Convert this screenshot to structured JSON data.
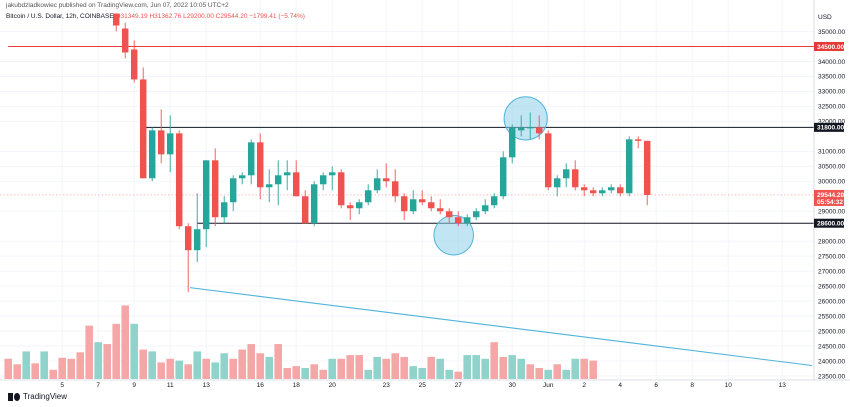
{
  "header": {
    "publisher": "jakubdzladkowiec published on TradingView.com, Jun 07, 2022 10:05 UTC+2",
    "symbol": "Bitcoin / U.S. Dollar, 12h, COINBASE",
    "o": "O31349.19",
    "h": "H31362.76",
    "l": "L29200.00",
    "c": "C29544.20",
    "chg": "−1799.41 (−5.74%)",
    "currency": "USD"
  },
  "logo": {
    "text": "TradingView"
  },
  "colors": {
    "up": "#26a69a",
    "down": "#ef5350",
    "up_vol": "#8fd3cb",
    "down_vol": "#f5a6a6",
    "resistance_red": "#e53935",
    "level_black": "#131722",
    "trend": "#4fb3d9",
    "circle_fill": "#8fd0ea"
  },
  "chart_data": {
    "type": "candlestick",
    "timeframe": "12h",
    "ylim": [
      23500,
      35500
    ],
    "y_ticks": [
      "35000.00",
      "34000.00",
      "33500.00",
      "33000.00",
      "32500.00",
      "32000.00",
      "31000.00",
      "30500.00",
      "30000.00",
      "29000.00",
      "28000.00",
      "27500.00",
      "27000.00",
      "26500.00",
      "26000.00",
      "25500.00",
      "25000.00",
      "24500.00",
      "24000.00",
      "23500.00"
    ],
    "x_ticks": [
      {
        "label": "5",
        "slot": 6
      },
      {
        "label": "7",
        "slot": 10
      },
      {
        "label": "9",
        "slot": 14
      },
      {
        "label": "11",
        "slot": 18
      },
      {
        "label": "13",
        "slot": 22
      },
      {
        "label": "16",
        "slot": 28
      },
      {
        "label": "18",
        "slot": 32
      },
      {
        "label": "20",
        "slot": 36
      },
      {
        "label": "23",
        "slot": 42
      },
      {
        "label": "25",
        "slot": 46
      },
      {
        "label": "27",
        "slot": 50
      },
      {
        "label": "30",
        "slot": 56
      },
      {
        "label": "Jun",
        "slot": 60
      },
      {
        "label": "2",
        "slot": 64
      },
      {
        "label": "4",
        "slot": 68
      },
      {
        "label": "6",
        "slot": 72
      },
      {
        "label": "8",
        "slot": 76
      },
      {
        "label": "10",
        "slot": 80
      },
      {
        "label": "13",
        "slot": 86
      }
    ],
    "candles": [
      {
        "slot": 12,
        "o": 35600,
        "h": 35600,
        "l": 35000,
        "c": 35200
      },
      {
        "slot": 13,
        "o": 35100,
        "h": 35300,
        "l": 34100,
        "c": 34300
      },
      {
        "slot": 14,
        "o": 34400,
        "h": 34700,
        "l": 33300,
        "c": 33400
      },
      {
        "slot": 15,
        "o": 33400,
        "h": 33800,
        "l": 30100,
        "c": 30100
      },
      {
        "slot": 16,
        "o": 30100,
        "h": 31800,
        "l": 30000,
        "c": 31700
      },
      {
        "slot": 17,
        "o": 31700,
        "h": 32400,
        "l": 30600,
        "c": 30900
      },
      {
        "slot": 18,
        "o": 30900,
        "h": 32200,
        "l": 30300,
        "c": 31600
      },
      {
        "slot": 19,
        "o": 31600,
        "h": 31700,
        "l": 28400,
        "c": 28500
      },
      {
        "slot": 20,
        "o": 28500,
        "h": 28600,
        "l": 26300,
        "c": 27700
      },
      {
        "slot": 21,
        "o": 27700,
        "h": 29600,
        "l": 27300,
        "c": 28400
      },
      {
        "slot": 22,
        "o": 28400,
        "h": 30700,
        "l": 27800,
        "c": 30700
      },
      {
        "slot": 23,
        "o": 30700,
        "h": 31100,
        "l": 28500,
        "c": 28800
      },
      {
        "slot": 24,
        "o": 28800,
        "h": 29500,
        "l": 28600,
        "c": 29300
      },
      {
        "slot": 25,
        "o": 29300,
        "h": 30200,
        "l": 29000,
        "c": 30100
      },
      {
        "slot": 26,
        "o": 30100,
        "h": 30300,
        "l": 29900,
        "c": 30200
      },
      {
        "slot": 27,
        "o": 30200,
        "h": 31400,
        "l": 29900,
        "c": 31300
      },
      {
        "slot": 28,
        "o": 31300,
        "h": 31600,
        "l": 29400,
        "c": 29800
      },
      {
        "slot": 29,
        "o": 29800,
        "h": 30400,
        "l": 29300,
        "c": 29900
      },
      {
        "slot": 30,
        "o": 29900,
        "h": 30700,
        "l": 29200,
        "c": 30200
      },
      {
        "slot": 31,
        "o": 30200,
        "h": 30700,
        "l": 29700,
        "c": 30300
      },
      {
        "slot": 32,
        "o": 30300,
        "h": 30700,
        "l": 29500,
        "c": 29500
      },
      {
        "slot": 33,
        "o": 29500,
        "h": 29700,
        "l": 28600,
        "c": 28600
      },
      {
        "slot": 34,
        "o": 28600,
        "h": 30000,
        "l": 28500,
        "c": 29900
      },
      {
        "slot": 35,
        "o": 29900,
        "h": 30300,
        "l": 29700,
        "c": 30200
      },
      {
        "slot": 36,
        "o": 30200,
        "h": 30500,
        "l": 29700,
        "c": 30300
      },
      {
        "slot": 37,
        "o": 30300,
        "h": 30400,
        "l": 29100,
        "c": 29200
      },
      {
        "slot": 38,
        "o": 29200,
        "h": 29300,
        "l": 28700,
        "c": 29100
      },
      {
        "slot": 39,
        "o": 29100,
        "h": 29400,
        "l": 28900,
        "c": 29300
      },
      {
        "slot": 40,
        "o": 29300,
        "h": 29900,
        "l": 29200,
        "c": 29700
      },
      {
        "slot": 41,
        "o": 29700,
        "h": 30400,
        "l": 29600,
        "c": 30100
      },
      {
        "slot": 42,
        "o": 30100,
        "h": 30600,
        "l": 29800,
        "c": 30000
      },
      {
        "slot": 43,
        "o": 30000,
        "h": 30400,
        "l": 29300,
        "c": 29500
      },
      {
        "slot": 44,
        "o": 29500,
        "h": 29600,
        "l": 28700,
        "c": 29000
      },
      {
        "slot": 45,
        "o": 29000,
        "h": 29700,
        "l": 28900,
        "c": 29400
      },
      {
        "slot": 46,
        "o": 29400,
        "h": 29700,
        "l": 29200,
        "c": 29300
      },
      {
        "slot": 47,
        "o": 29300,
        "h": 29500,
        "l": 29000,
        "c": 29100
      },
      {
        "slot": 48,
        "o": 29100,
        "h": 29400,
        "l": 28900,
        "c": 29000
      },
      {
        "slot": 49,
        "o": 29000,
        "h": 29100,
        "l": 28600,
        "c": 28800
      },
      {
        "slot": 50,
        "o": 28800,
        "h": 29000,
        "l": 28500,
        "c": 28600
      },
      {
        "slot": 51,
        "o": 28600,
        "h": 28900,
        "l": 28500,
        "c": 28800
      },
      {
        "slot": 52,
        "o": 28800,
        "h": 29100,
        "l": 28700,
        "c": 29000
      },
      {
        "slot": 53,
        "o": 29000,
        "h": 29400,
        "l": 28900,
        "c": 29200
      },
      {
        "slot": 54,
        "o": 29200,
        "h": 29600,
        "l": 29100,
        "c": 29500
      },
      {
        "slot": 55,
        "o": 29500,
        "h": 31000,
        "l": 29400,
        "c": 30800
      },
      {
        "slot": 56,
        "o": 30800,
        "h": 31900,
        "l": 30600,
        "c": 31800
      },
      {
        "slot": 57,
        "o": 31700,
        "h": 32200,
        "l": 31500,
        "c": 31800
      },
      {
        "slot": 58,
        "o": 31800,
        "h": 32300,
        "l": 31400,
        "c": 31800
      },
      {
        "slot": 59,
        "o": 31800,
        "h": 32200,
        "l": 31400,
        "c": 31600
      },
      {
        "slot": 60,
        "o": 31600,
        "h": 31700,
        "l": 29700,
        "c": 29800
      },
      {
        "slot": 61,
        "o": 29800,
        "h": 30200,
        "l": 29500,
        "c": 30100
      },
      {
        "slot": 62,
        "o": 30100,
        "h": 30600,
        "l": 29800,
        "c": 30400
      },
      {
        "slot": 63,
        "o": 30400,
        "h": 30700,
        "l": 29700,
        "c": 29800
      },
      {
        "slot": 64,
        "o": 29800,
        "h": 29900,
        "l": 29500,
        "c": 29700
      },
      {
        "slot": 65,
        "o": 29700,
        "h": 29800,
        "l": 29500,
        "c": 29600
      },
      {
        "slot": 66,
        "o": 29600,
        "h": 29800,
        "l": 29500,
        "c": 29700
      },
      {
        "slot": 67,
        "o": 29700,
        "h": 29900,
        "l": 29600,
        "c": 29800
      },
      {
        "slot": 68,
        "o": 29800,
        "h": 29900,
        "l": 29500,
        "c": 29600
      },
      {
        "slot": 69,
        "o": 29600,
        "h": 31500,
        "l": 29500,
        "c": 31400
      },
      {
        "slot": 70,
        "o": 31400,
        "h": 31500,
        "l": 31100,
        "c": 31350
      },
      {
        "slot": 71,
        "o": 31350,
        "h": 31360,
        "l": 29200,
        "c": 29544
      }
    ],
    "volume": [
      {
        "slot": 0,
        "v": 0.22,
        "up": false
      },
      {
        "slot": 1,
        "v": 0.16,
        "up": false
      },
      {
        "slot": 2,
        "v": 0.3,
        "up": true
      },
      {
        "slot": 3,
        "v": 0.17,
        "up": false
      },
      {
        "slot": 4,
        "v": 0.3,
        "up": true
      },
      {
        "slot": 5,
        "v": 0.1,
        "up": false
      },
      {
        "slot": 6,
        "v": 0.23,
        "up": false
      },
      {
        "slot": 7,
        "v": 0.22,
        "up": false
      },
      {
        "slot": 8,
        "v": 0.29,
        "up": false
      },
      {
        "slot": 9,
        "v": 0.58,
        "up": false
      },
      {
        "slot": 10,
        "v": 0.4,
        "up": true
      },
      {
        "slot": 11,
        "v": 0.38,
        "up": false
      },
      {
        "slot": 12,
        "v": 0.6,
        "up": false
      },
      {
        "slot": 13,
        "v": 0.8,
        "up": false
      },
      {
        "slot": 14,
        "v": 0.6,
        "up": true
      },
      {
        "slot": 15,
        "v": 0.32,
        "up": false
      },
      {
        "slot": 16,
        "v": 0.3,
        "up": true
      },
      {
        "slot": 17,
        "v": 0.18,
        "up": false
      },
      {
        "slot": 18,
        "v": 0.22,
        "up": false
      },
      {
        "slot": 19,
        "v": 0.2,
        "up": true
      },
      {
        "slot": 20,
        "v": 0.16,
        "up": false
      },
      {
        "slot": 21,
        "v": 0.3,
        "up": true
      },
      {
        "slot": 22,
        "v": 0.22,
        "up": false
      },
      {
        "slot": 23,
        "v": 0.18,
        "up": true
      },
      {
        "slot": 24,
        "v": 0.28,
        "up": true
      },
      {
        "slot": 25,
        "v": 0.22,
        "up": false
      },
      {
        "slot": 26,
        "v": 0.32,
        "up": false
      },
      {
        "slot": 27,
        "v": 0.38,
        "up": false
      },
      {
        "slot": 28,
        "v": 0.28,
        "up": false
      },
      {
        "slot": 29,
        "v": 0.24,
        "up": true
      },
      {
        "slot": 30,
        "v": 0.38,
        "up": false
      },
      {
        "slot": 31,
        "v": 0.12,
        "up": false
      },
      {
        "slot": 32,
        "v": 0.14,
        "up": false
      },
      {
        "slot": 33,
        "v": 0.12,
        "up": true
      },
      {
        "slot": 34,
        "v": 0.16,
        "up": false
      },
      {
        "slot": 35,
        "v": 0.1,
        "up": false
      },
      {
        "slot": 36,
        "v": 0.22,
        "up": true
      },
      {
        "slot": 37,
        "v": 0.22,
        "up": false
      },
      {
        "slot": 38,
        "v": 0.26,
        "up": false
      },
      {
        "slot": 39,
        "v": 0.26,
        "up": false
      },
      {
        "slot": 40,
        "v": 0.1,
        "up": true
      },
      {
        "slot": 41,
        "v": 0.24,
        "up": true
      },
      {
        "slot": 42,
        "v": 0.22,
        "up": false
      },
      {
        "slot": 43,
        "v": 0.28,
        "up": false
      },
      {
        "slot": 44,
        "v": 0.24,
        "up": false
      },
      {
        "slot": 45,
        "v": 0.14,
        "up": true
      },
      {
        "slot": 46,
        "v": 0.12,
        "up": true
      },
      {
        "slot": 47,
        "v": 0.24,
        "up": false
      },
      {
        "slot": 48,
        "v": 0.22,
        "up": true
      },
      {
        "slot": 49,
        "v": 0.1,
        "up": true
      },
      {
        "slot": 50,
        "v": 0.08,
        "up": false
      },
      {
        "slot": 51,
        "v": 0.26,
        "up": true
      },
      {
        "slot": 52,
        "v": 0.26,
        "up": true
      },
      {
        "slot": 53,
        "v": 0.22,
        "up": true
      },
      {
        "slot": 54,
        "v": 0.4,
        "up": false
      },
      {
        "slot": 55,
        "v": 0.24,
        "up": false
      },
      {
        "slot": 56,
        "v": 0.26,
        "up": true
      },
      {
        "slot": 57,
        "v": 0.22,
        "up": true
      },
      {
        "slot": 58,
        "v": 0.16,
        "up": false
      },
      {
        "slot": 59,
        "v": 0.12,
        "up": false
      },
      {
        "slot": 60,
        "v": 0.1,
        "up": true
      },
      {
        "slot": 61,
        "v": 0.16,
        "up": false
      },
      {
        "slot": 62,
        "v": 0.1,
        "up": true
      },
      {
        "slot": 63,
        "v": 0.22,
        "up": true
      },
      {
        "slot": 64,
        "v": 0.22,
        "up": false
      },
      {
        "slot": 65,
        "v": 0.2,
        "up": false
      }
    ],
    "levels": [
      {
        "price": 34500,
        "label": "34500.00",
        "style": "red",
        "x_from_slot": 0
      },
      {
        "price": 31800,
        "label": "31800.00",
        "style": "black",
        "x_from_slot": 15
      },
      {
        "price": 28600,
        "label": "28600.00",
        "style": "black",
        "x_from_slot": 21
      }
    ],
    "current_price": {
      "price": 29544.2,
      "label": "29544.20",
      "countdown": "05:54:32"
    },
    "trendline": {
      "from": {
        "slot": 20.2,
        "price": 26450
      },
      "to": {
        "slot": 100,
        "price": 23850
      }
    },
    "highlight_circles": [
      {
        "slot": 57.5,
        "price": 32100,
        "r_slots": 2.4
      },
      {
        "slot": 49.5,
        "price": 28200,
        "r_slots": 2.2
      }
    ]
  }
}
